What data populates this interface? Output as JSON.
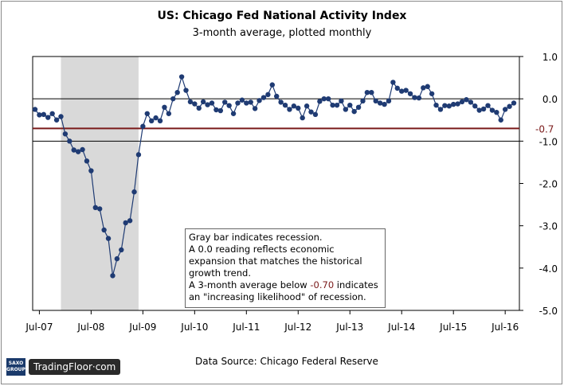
{
  "logo": {
    "brand": "SAXO GROUP",
    "site": "TradingFloor·com"
  },
  "source": "Data Source: Chicago Federal Reserve",
  "note": {
    "line1": "Gray bar indicates recession.",
    "line2": "A 0.0 reading reflects economic",
    "line3": "expansion that matches the historical",
    "line4": "growth trend.",
    "line5_pre": "A 3-month average below ",
    "line5_hl": "-0.70",
    "line5_post": " indicates",
    "line6": "an \"increasing likelihood\" of recession."
  },
  "colors": {
    "series": "#1f3b73",
    "threshold": "#7a1a1a",
    "recession": "#d9d9d9",
    "gridline": "#000000"
  },
  "chart_data": {
    "type": "line",
    "title": "US: Chicago Fed National Activity Index",
    "subtitle": "3-month average, plotted monthly",
    "ylim": [
      -5.0,
      1.0
    ],
    "y_ticks": [
      "1.0",
      "0.0",
      "-1.0",
      "-2.0",
      "-3.0",
      "-4.0",
      "-5.0"
    ],
    "x_tick_labels": [
      "Jul-07",
      "Jul-08",
      "Jul-09",
      "Jul-10",
      "Jul-11",
      "Jul-12",
      "Jul-13",
      "Jul-14",
      "Jul-15",
      "Jul-16"
    ],
    "x_start": "2007-06",
    "threshold": {
      "value": -0.7,
      "label": "-0.7"
    },
    "recession": {
      "start": "2007-12",
      "end": "2009-06"
    },
    "series": [
      {
        "values": [
          -0.25,
          -0.38,
          -0.37,
          -0.44,
          -0.35,
          -0.5,
          -0.42,
          -0.83,
          -1.0,
          -1.21,
          -1.25,
          -1.2,
          -1.47,
          -1.7,
          -2.57,
          -2.6,
          -3.1,
          -3.3,
          -4.18,
          -3.78,
          -3.57,
          -2.93,
          -2.88,
          -2.2,
          -1.32,
          -0.65,
          -0.35,
          -0.52,
          -0.45,
          -0.52,
          -0.2,
          -0.35,
          0.0,
          0.15,
          0.52,
          0.2,
          -0.07,
          -0.12,
          -0.22,
          -0.07,
          -0.14,
          -0.1,
          -0.26,
          -0.28,
          -0.08,
          -0.16,
          -0.35,
          -0.1,
          -0.03,
          -0.1,
          -0.08,
          -0.23,
          -0.04,
          0.03,
          0.1,
          0.33,
          0.06,
          -0.08,
          -0.15,
          -0.25,
          -0.17,
          -0.22,
          -0.45,
          -0.17,
          -0.31,
          -0.37,
          -0.06,
          0.0,
          0.0,
          -0.15,
          -0.15,
          -0.05,
          -0.25,
          -0.15,
          -0.3,
          -0.2,
          -0.05,
          0.15,
          0.15,
          -0.05,
          -0.1,
          -0.13,
          -0.05,
          0.39,
          0.25,
          0.18,
          0.2,
          0.12,
          0.03,
          0.02,
          0.26,
          0.29,
          0.12,
          -0.15,
          -0.25,
          -0.16,
          -0.17,
          -0.13,
          -0.12,
          -0.07,
          -0.02,
          -0.08,
          -0.17,
          -0.27,
          -0.24,
          -0.16,
          -0.27,
          -0.32,
          -0.5,
          -0.25,
          -0.18,
          -0.1
        ]
      }
    ]
  }
}
